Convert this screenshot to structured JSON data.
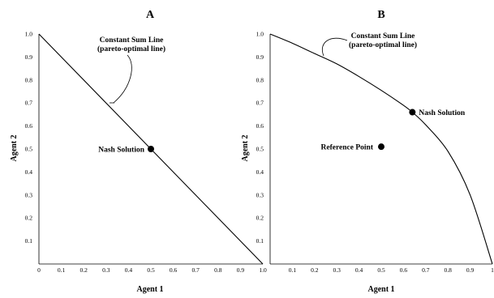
{
  "chart_data": [
    {
      "type": "line",
      "title": "A",
      "xlabel": "Agent 1",
      "ylabel": "Agent 2",
      "xlim": [
        0,
        1
      ],
      "ylim": [
        0,
        1
      ],
      "x_ticks": [
        "0",
        "0.1",
        "0.2",
        "0.3",
        "0.4",
        "0.5",
        "0.6",
        "0.7",
        "0.8",
        "0.9",
        "1.0"
      ],
      "y_ticks": [
        "0.1",
        "0.2",
        "0.3",
        "0.4",
        "0.5",
        "0.6",
        "0.7",
        "0.8",
        "0.9",
        "1.0"
      ],
      "series": [
        {
          "name": "Constant Sum Line (pareto-optimal line)",
          "x": [
            0,
            1
          ],
          "y": [
            1,
            0
          ]
        }
      ],
      "points": [
        {
          "label": "Nash Solution",
          "x": 0.5,
          "y": 0.5
        }
      ],
      "annotations": [
        {
          "line1": "Constant Sum Line",
          "line2": "(pareto-optimal line)"
        }
      ],
      "grid": false
    },
    {
      "type": "line",
      "title": "B",
      "xlabel": "Agent 1",
      "ylabel": "Agent 2",
      "xlim": [
        0,
        1
      ],
      "ylim": [
        0,
        1
      ],
      "x_ticks": [
        "0.1",
        "0.2",
        "0.3",
        "0.4",
        "0.5",
        "0.6",
        "0.7",
        "0.8",
        "0.9",
        "1"
      ],
      "y_ticks": [
        "0.1",
        "0.2",
        "0.3",
        "0.4",
        "0.5",
        "0.6",
        "0.7",
        "0.8",
        "0.9",
        "1.0"
      ],
      "series": [
        {
          "name": "Constant Sum Line (pareto-optimal line)",
          "x": [
            0,
            0.1,
            0.2,
            0.3,
            0.4,
            0.5,
            0.6,
            0.64,
            0.7,
            0.8,
            0.9,
            1.0
          ],
          "y": [
            1.0,
            0.96,
            0.915,
            0.87,
            0.815,
            0.755,
            0.69,
            0.66,
            0.605,
            0.49,
            0.3,
            0
          ]
        }
      ],
      "points": [
        {
          "label": "Nash Solution",
          "x": 0.64,
          "y": 0.66
        },
        {
          "label": "Reference Point",
          "x": 0.5,
          "y": 0.51
        }
      ],
      "annotations": [
        {
          "line1": "Constant Sum Line",
          "line2": "(pareto-optimal line)"
        }
      ],
      "grid": false
    }
  ]
}
